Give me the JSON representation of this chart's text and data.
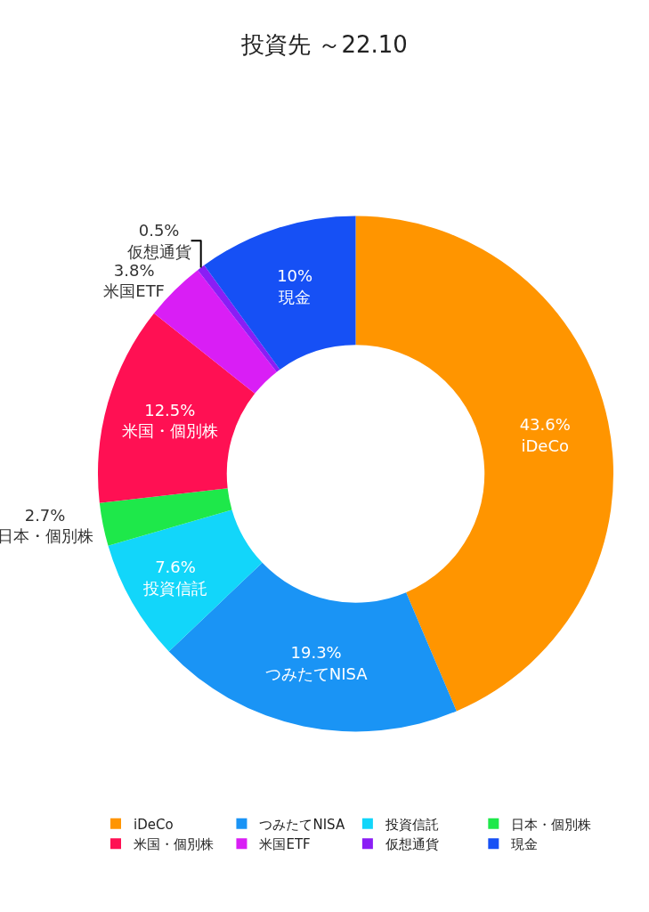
{
  "chart_data": {
    "type": "donut",
    "title": "投資先 ～22.10",
    "categories": [
      "iDeCo",
      "つみたてNISA",
      "投資信託",
      "日本・個別株",
      "米国・個別株",
      "米国ETF",
      "仮想通貨",
      "現金"
    ],
    "values": [
      43.6,
      19.3,
      7.6,
      2.7,
      12.5,
      3.8,
      0.5,
      10
    ],
    "value_labels": [
      "43.6%",
      "19.3%",
      "7.6%",
      "2.7%",
      "12.5%",
      "3.8%",
      "0.5%",
      "10%"
    ],
    "colors": [
      "#ff9500",
      "#1a94f5",
      "#12d6fa",
      "#1ee84a",
      "#ff1053",
      "#d91ef5",
      "#8a1ef5",
      "#1650f5"
    ],
    "legend": "bottom"
  }
}
